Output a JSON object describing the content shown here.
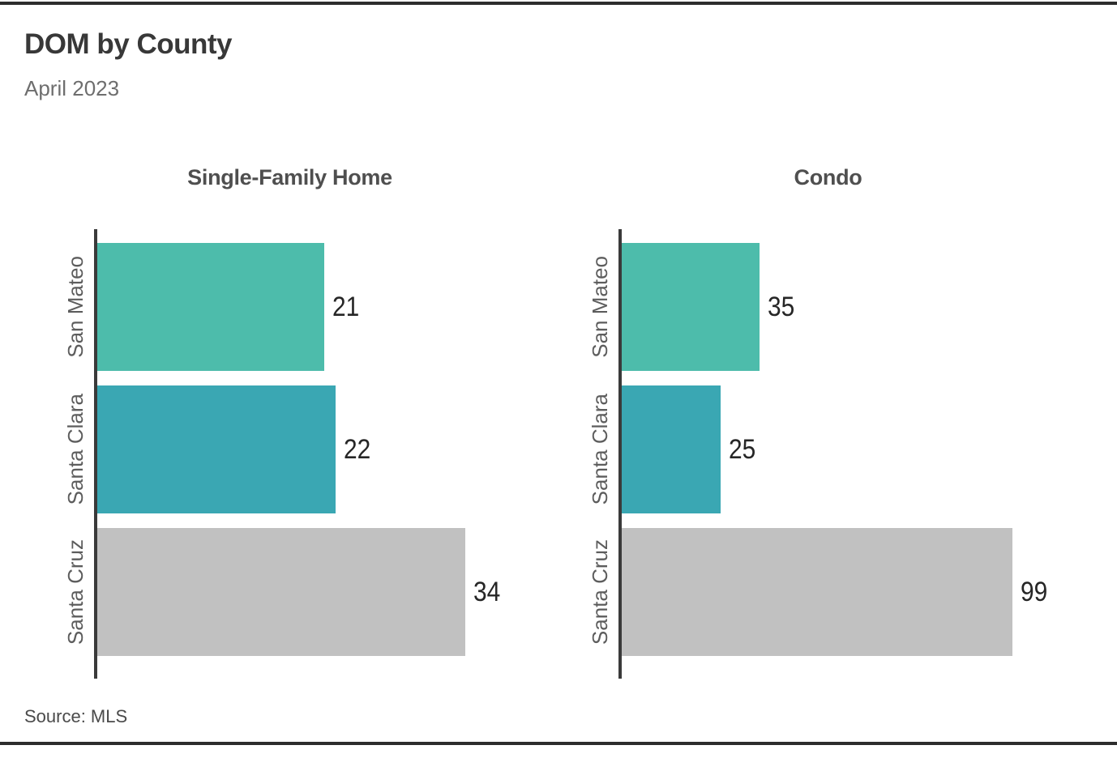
{
  "page": {
    "title": "DOM by County",
    "subtitle": "April 2023",
    "source": "Source: MLS"
  },
  "colors": {
    "san_mateo_bar": "#4dbcab",
    "santa_clara_bar": "#3aa7b3",
    "santa_cruz_bar": "#c1c1c1",
    "axis_line": "#3a3a3a",
    "border_rule": "#2d2d2d",
    "value_label": "#262626",
    "county_label": "#5d5d5d",
    "facet_title": "#4f4f4f"
  },
  "chart_data": [
    {
      "type": "bar",
      "orientation": "horizontal",
      "title": "Single-Family Home",
      "categories": [
        "San Mateo",
        "Santa Clara",
        "Santa Cruz"
      ],
      "values": [
        21,
        22,
        34
      ],
      "bar_colors": [
        "#4dbcab",
        "#3aa7b3",
        "#c1c1c1"
      ],
      "value_labels": [
        "21",
        "22",
        "34"
      ],
      "xlabel": "",
      "ylabel": "",
      "grid": false,
      "legend": false,
      "max_bar_fill_fraction": 0.84
    },
    {
      "type": "bar",
      "orientation": "horizontal",
      "title": "Condo",
      "categories": [
        "San Mateo",
        "Santa Clara",
        "Santa Cruz"
      ],
      "values": [
        35,
        25,
        99
      ],
      "bar_colors": [
        "#4dbcab",
        "#3aa7b3",
        "#c1c1c1"
      ],
      "value_labels": [
        "35",
        "25",
        "99"
      ],
      "xlabel": "",
      "ylabel": "",
      "grid": false,
      "legend": false,
      "max_bar_fill_fraction": 0.84
    }
  ]
}
